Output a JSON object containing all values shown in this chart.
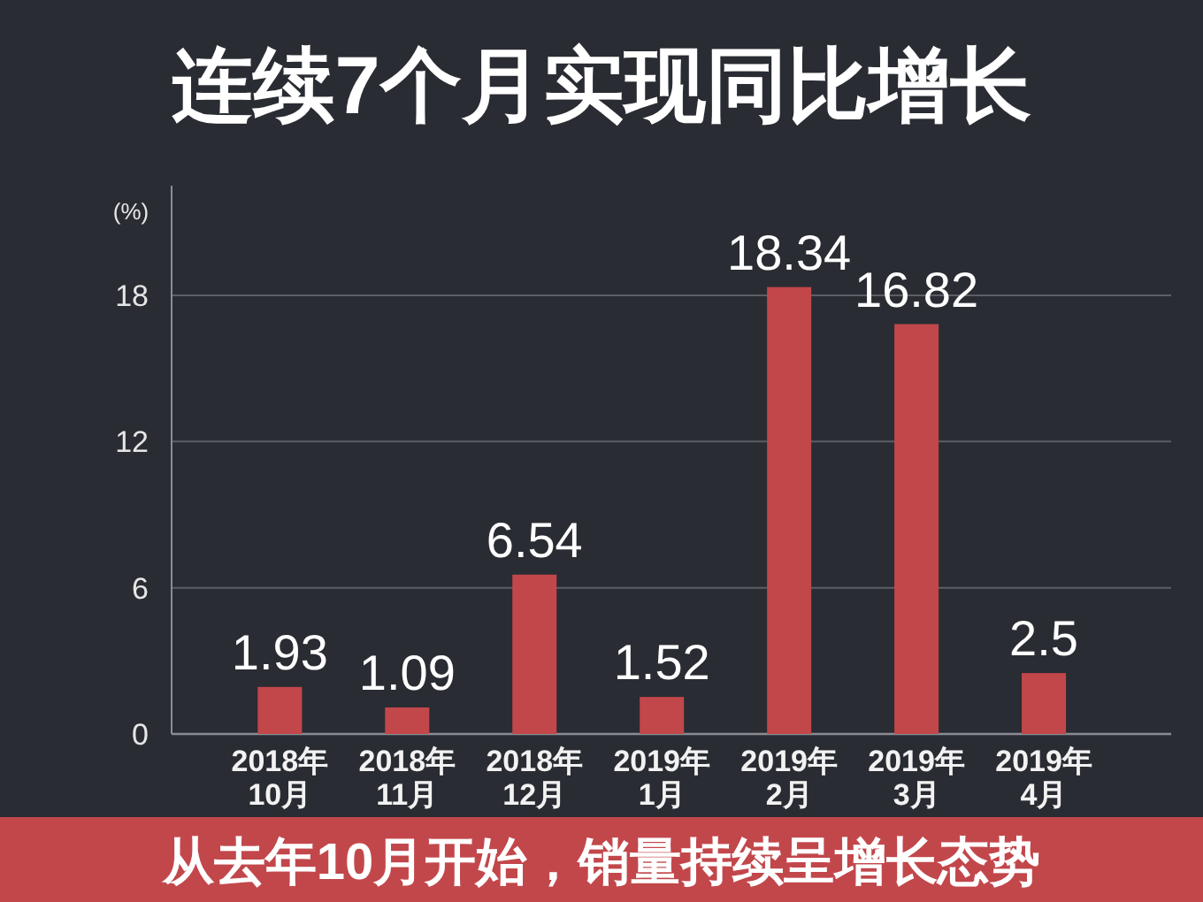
{
  "chart_data": {
    "type": "bar",
    "title": "连续7个月实现同比增长",
    "ylabel": "(%)",
    "categories": [
      "2018年\n10月",
      "2018年\n11月",
      "2018年\n12月",
      "2019年\n1月",
      "2019年\n2月",
      "2019年\n3月",
      "2019年\n4月"
    ],
    "values": [
      1.93,
      1.09,
      6.54,
      1.52,
      18.34,
      16.82,
      2.5
    ],
    "color": "#c2474b",
    "ylim": [
      0,
      22.5
    ],
    "yticks": [
      0,
      6,
      12,
      18
    ],
    "grid": "y",
    "data_labels": true,
    "annotations": [
      "从去年10月开始，销量持续呈增长态势"
    ]
  }
}
